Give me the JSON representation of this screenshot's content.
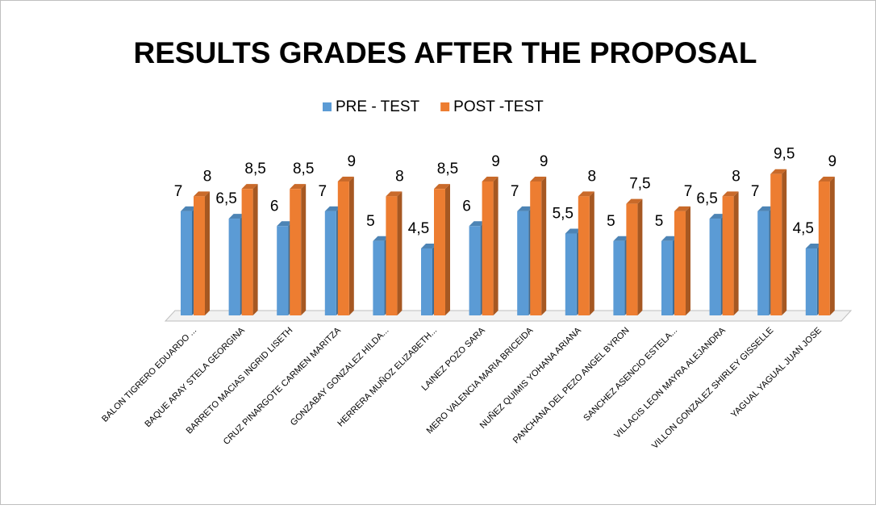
{
  "chart_data": {
    "type": "bar3d",
    "title": "RESULTS GRADES AFTER THE PROPOSAL",
    "categories": [
      "BALON TIGRERO EDUARDO ...",
      "BAQUE ARAY STELA GEORGINA",
      "BARRETO MACIAS INGRID LISETH",
      "CRUZ PINARGOTE CARMEN MARITZA",
      "GONZABAY GONZALEZ HILDA...",
      "HERRERA MUÑOZ ELIZABETH...",
      "LAINEZ POZO SARA",
      "MERO VALENCIA MARIA BRICEIDA",
      "NUÑEZ QUIMIS YOHANA ARIANA",
      "PANCHANA DEL PEZO ANGEL BYRON",
      "SANCHEZ ASENCIO ESTELA...",
      "VILLACIS LEON MAYRA ALEJANDRA",
      "VILLON GONZALEZ SHIRLEY GISSELLE",
      "YAGUAL YAGUAL JUAN JOSE"
    ],
    "series": [
      {
        "name": "PRE - TEST",
        "color": "#5b9bd5",
        "values": [
          7,
          6.5,
          6,
          7,
          5,
          4.5,
          6,
          7,
          5.5,
          5,
          5,
          6.5,
          7,
          4.5
        ],
        "value_labels": [
          "7",
          "6,5",
          "6",
          "7",
          "5",
          "4,5",
          "6",
          "7",
          "5,5",
          "5",
          "5",
          "6,5",
          "7",
          "4,5"
        ]
      },
      {
        "name": "POST -TEST",
        "color": "#ed7d31",
        "values": [
          8,
          8.5,
          8.5,
          9,
          8,
          8.5,
          9,
          9,
          8,
          7.5,
          7,
          8,
          9.5,
          9
        ],
        "value_labels": [
          "8",
          "8,5",
          "8,5",
          "9",
          "8",
          "8,5",
          "9",
          "9",
          "8",
          "7,5",
          "7",
          "8",
          "9,5",
          "9"
        ]
      }
    ],
    "ylim": [
      0,
      10
    ],
    "legend": "top"
  }
}
